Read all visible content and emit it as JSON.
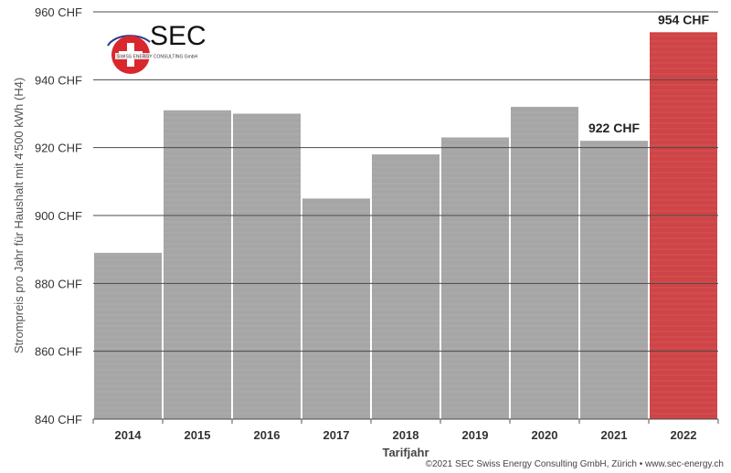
{
  "logo": {
    "name": "SEC",
    "tagline": "SWISS ENERGY CONSULTING GmbH",
    "colors": {
      "red": "#d8282e",
      "blue": "#2a3c8c"
    }
  },
  "chart_data": {
    "type": "bar",
    "categories": [
      "2014",
      "2015",
      "2016",
      "2017",
      "2018",
      "2019",
      "2020",
      "2021",
      "2022"
    ],
    "values": [
      889,
      931,
      930,
      905,
      918,
      923,
      932,
      922,
      954
    ],
    "data_labels": [
      {
        "category": "2021",
        "text": "922 CHF"
      },
      {
        "category": "2022",
        "text": "954 CHF"
      }
    ],
    "highlight_category": "2022",
    "xlabel": "Tarifjahr",
    "ylabel": "Strompreis pro Jahr für Haushalt mit 4'500 kWh (H4)",
    "ylim": [
      840,
      960
    ],
    "yticks": [
      {
        "value": 840,
        "label": "840 CHF"
      },
      {
        "value": 860,
        "label": "860 CHF"
      },
      {
        "value": 880,
        "label": "880 CHF"
      },
      {
        "value": 900,
        "label": "900 CHF"
      },
      {
        "value": 920,
        "label": "920 CHF"
      },
      {
        "value": 940,
        "label": "940 CHF"
      },
      {
        "value": 960,
        "label": "960 CHF"
      }
    ],
    "grid": true,
    "colors": {
      "bar": "#a6a6a6",
      "highlight": "#cf4446",
      "bar_lines": "#b3b3b3",
      "gridline": "#4a4a4a"
    }
  },
  "footer": {
    "copyright": "©2021 SEC Swiss Energy Consulting GmbH, Zürich • www.sec-energy.ch"
  }
}
